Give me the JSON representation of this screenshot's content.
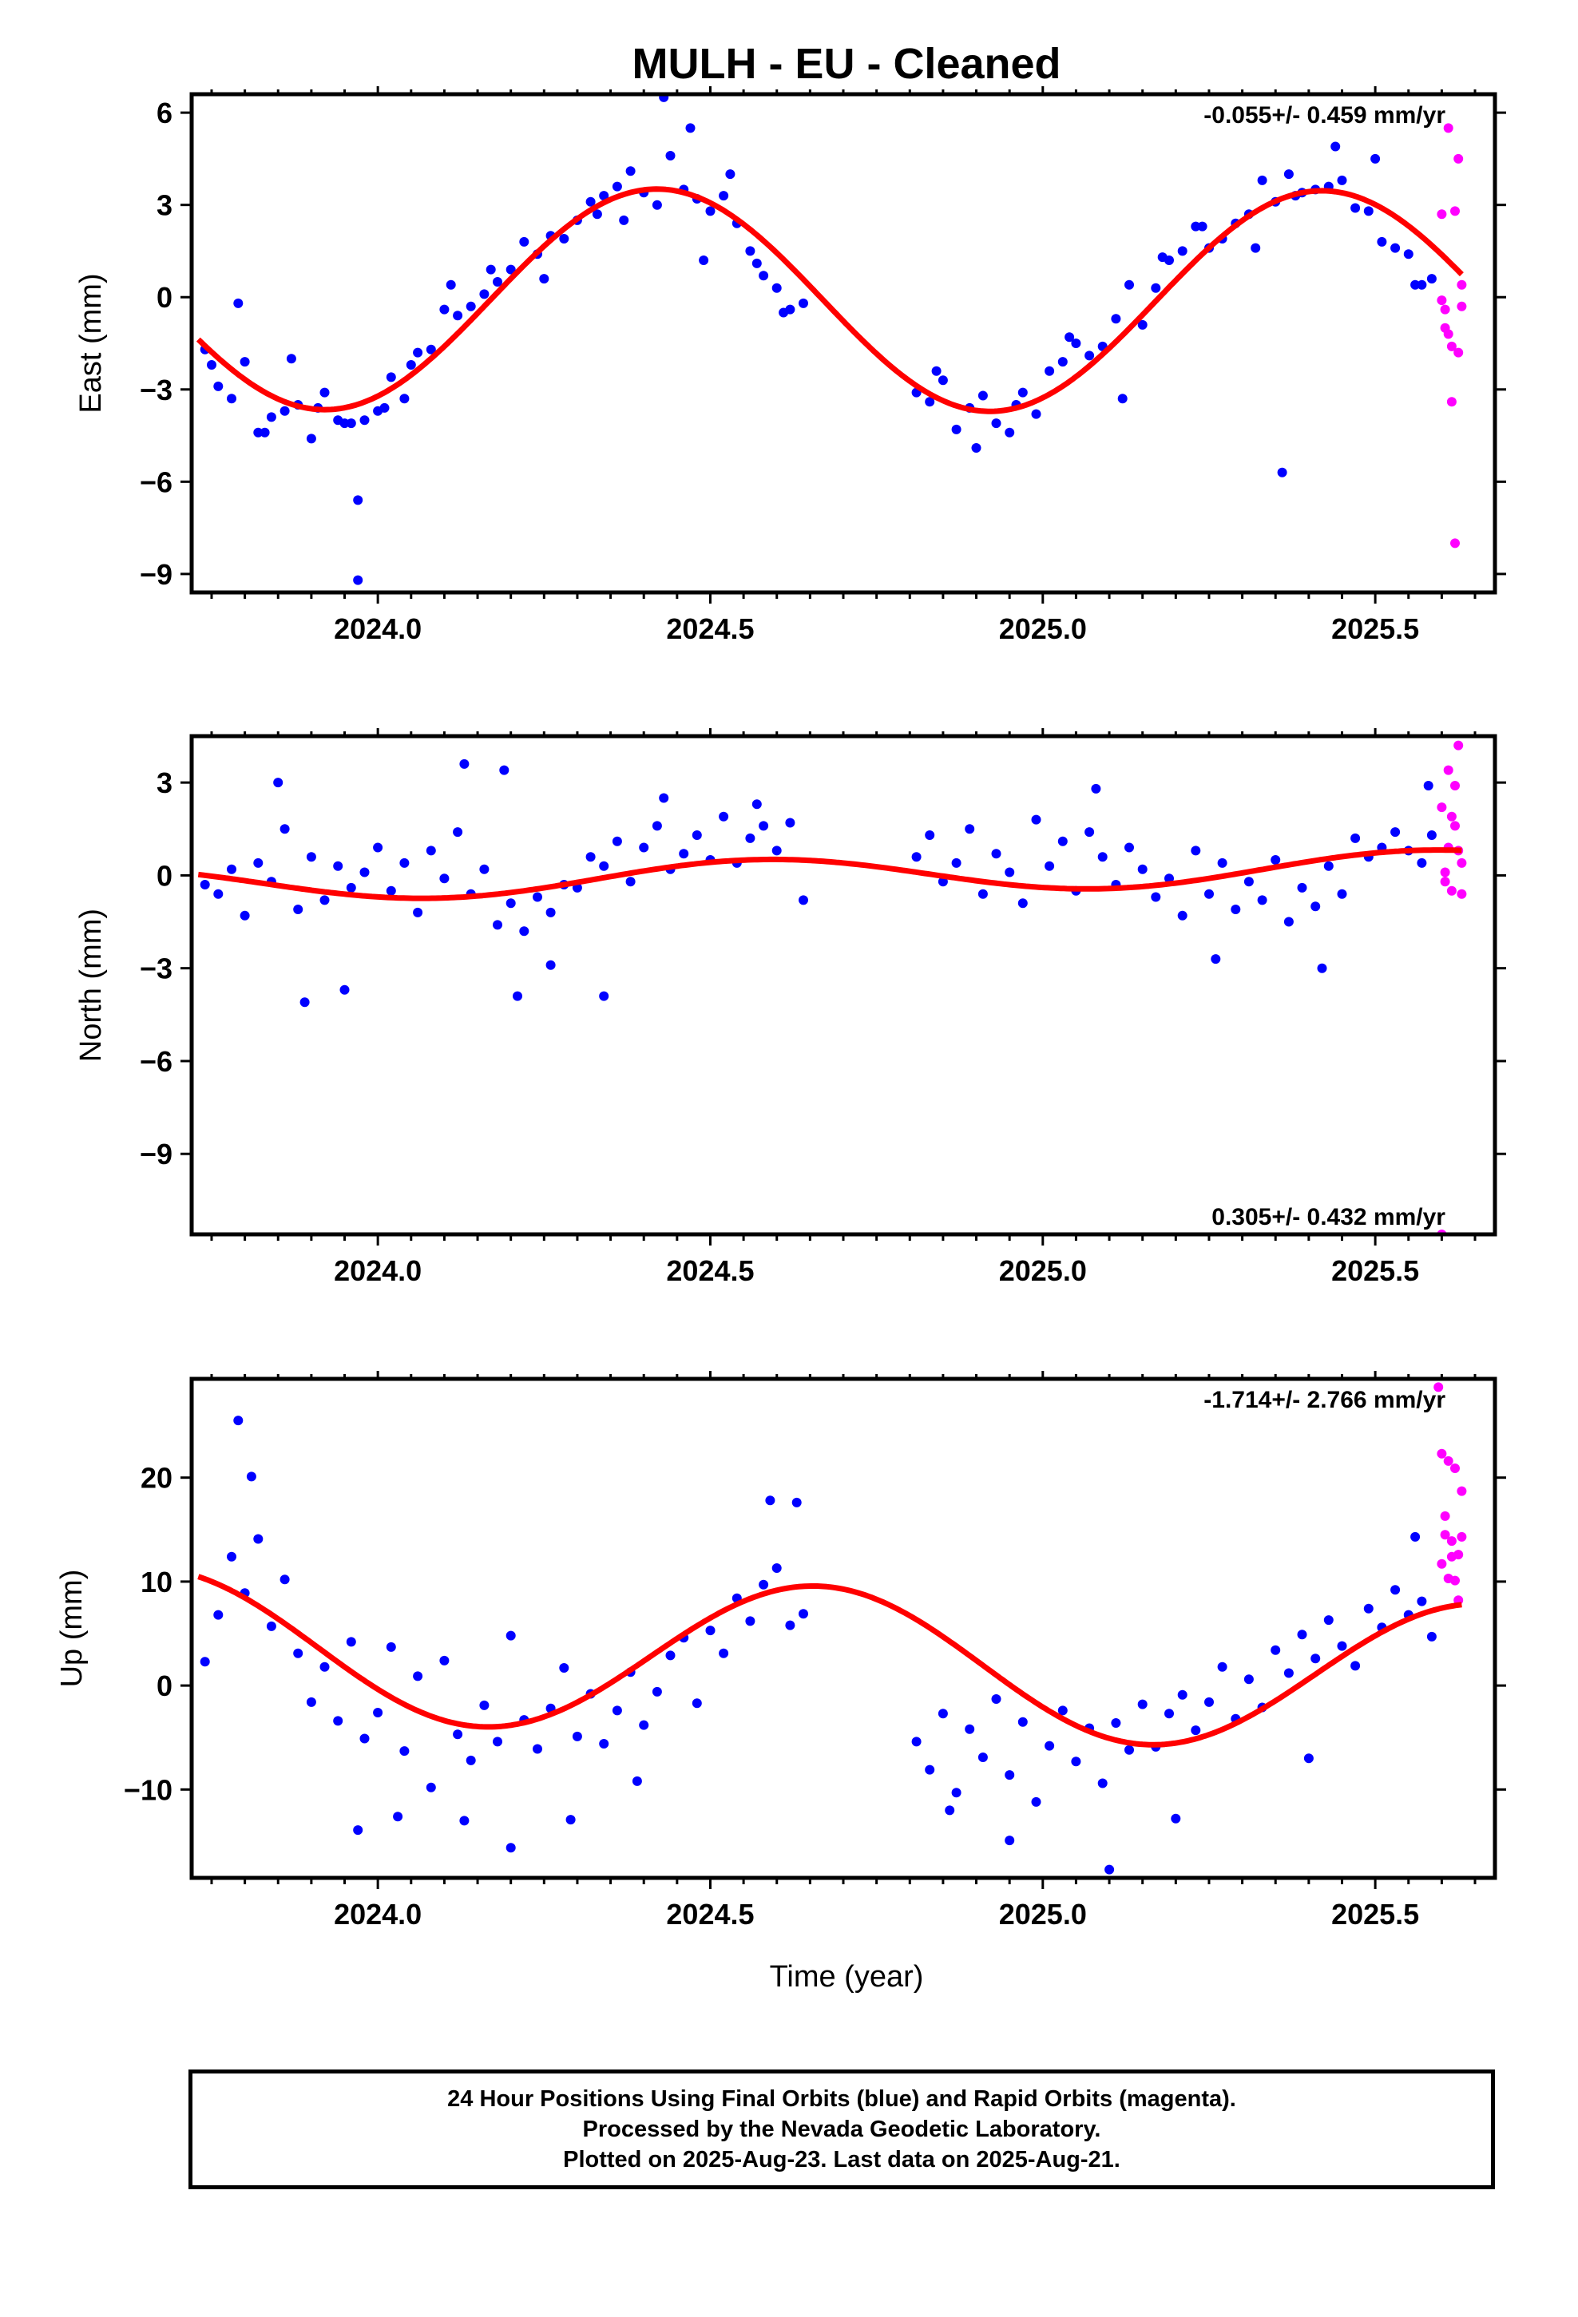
{
  "title": "MULH  - EU - Cleaned",
  "xlabel": "Time (year)",
  "caption": [
    "24 Hour Positions Using Final Orbits (blue) and Rapid Orbits (magenta).",
    "Processed by the Nevada Geodetic Laboratory.",
    "Plotted on 2025-Aug-23. Last data on 2025-Aug-21."
  ],
  "colors": {
    "final": "#0000ff",
    "rapid": "#ff00ff",
    "model": "#ff0000",
    "frame": "#000000"
  },
  "chart_data": [
    {
      "type": "scatter",
      "ylabel": "East (mm)",
      "rate": "-0.055+/- 0.459 mm/yr",
      "rate_placement": "top-right",
      "xlim": [
        2023.72,
        2025.68
      ],
      "ylim": [
        -9.6,
        6.6
      ],
      "xticks": [
        2024.0,
        2024.5,
        2025.0,
        2025.5
      ],
      "xtick_labels": [
        "2024.0",
        "2024.5",
        "2025.0",
        "2025.5"
      ],
      "yticks": [
        6,
        3,
        0,
        -3,
        -6,
        -9
      ],
      "ytick_labels": [
        "6",
        "3",
        "0",
        "−3",
        "−6",
        "−9"
      ],
      "model": {
        "offset": -0.1,
        "trend": -0.055,
        "annual_amp": 3.6,
        "annual_peak": 0.42,
        "x_start": 2023.73,
        "x_end": 2025.63
      },
      "series": [
        {
          "x": [
            2023.74,
            2023.76,
            2023.78,
            2023.8,
            2023.82,
            2023.84,
            2023.86,
            2023.88,
            2023.9,
            2023.92,
            2023.94,
            2023.96,
            2023.98,
            2024.0,
            2024.02,
            2024.04,
            2024.06,
            2024.08,
            2024.1,
            2024.12,
            2024.14,
            2024.16,
            2024.18,
            2024.2,
            2024.22,
            2024.24,
            2024.26,
            2024.28,
            2024.3,
            2024.32,
            2024.34,
            2024.36,
            2024.38,
            2024.4,
            2024.42,
            2024.44,
            2024.46,
            2024.48,
            2024.5,
            2024.52,
            2024.54,
            2024.56,
            2024.58,
            2024.6,
            2024.62,
            2024.64,
            2024.81,
            2024.83,
            2024.85,
            2024.87,
            2024.89,
            2024.91,
            2024.93,
            2024.95,
            2024.97,
            2024.99,
            2025.01,
            2025.03,
            2025.05,
            2025.07,
            2025.09,
            2025.11,
            2025.13,
            2025.15,
            2025.17,
            2025.19,
            2025.21,
            2025.23,
            2025.25,
            2025.27,
            2025.29,
            2025.31,
            2025.33,
            2025.35,
            2025.37,
            2025.39,
            2025.41,
            2025.43,
            2025.45,
            2025.47,
            2025.49,
            2025.51,
            2025.53,
            2025.55,
            2025.57,
            2025.585,
            2023.75,
            2023.79,
            2023.83,
            2023.87,
            2023.91,
            2023.95,
            2023.97,
            2024.01,
            2024.05,
            2024.11,
            2024.17,
            2024.25,
            2024.33,
            2024.37,
            2024.43,
            2024.47,
            2024.49,
            2024.53,
            2024.57,
            2024.61,
            2024.84,
            2024.9,
            2024.96,
            2025.04,
            2025.12,
            2025.18,
            2025.24,
            2025.32,
            2025.38,
            2025.44,
            2025.5,
            2025.56
          ],
          "y": [
            -1.7,
            -2.9,
            -3.3,
            -2.1,
            -4.4,
            -3.9,
            -3.7,
            -3.5,
            -4.6,
            -3.1,
            -4.0,
            -4.1,
            -4.0,
            -3.7,
            -2.6,
            -3.3,
            -1.8,
            -1.7,
            -0.4,
            -0.6,
            -0.3,
            0.1,
            0.5,
            0.9,
            1.8,
            1.4,
            2.0,
            1.9,
            2.5,
            3.1,
            3.3,
            3.6,
            4.1,
            3.4,
            3.0,
            4.6,
            3.5,
            3.2,
            2.8,
            3.3,
            2.4,
            1.5,
            0.7,
            0.3,
            -0.4,
            -0.2,
            -3.1,
            -3.4,
            -2.7,
            -4.3,
            -3.6,
            -3.2,
            -4.1,
            -4.4,
            -3.1,
            -3.8,
            -2.4,
            -2.1,
            -1.5,
            -1.9,
            -1.6,
            -0.7,
            0.4,
            -0.9,
            0.3,
            1.2,
            1.5,
            2.3,
            1.6,
            1.9,
            2.4,
            2.7,
            3.8,
            3.1,
            4.0,
            3.4,
            3.5,
            3.6,
            3.8,
            2.9,
            2.8,
            1.8,
            1.6,
            1.4,
            0.4,
            0.6,
            -2.2,
            -0.2,
            -4.4,
            -2.0,
            -3.6,
            -4.1,
            -6.6,
            -3.6,
            -2.2,
            0.4,
            0.9,
            0.6,
            2.7,
            2.5,
            6.5,
            5.5,
            1.2,
            4.0,
            1.1,
            -0.5,
            -2.4,
            -4.9,
            -3.5,
            -1.3,
            -3.3,
            1.3,
            2.3,
            1.6,
            3.3,
            4.9,
            4.5,
            0.4
          ]
        },
        {
          "x": [
            2023.97,
            2025.36
          ],
          "y": [
            -9.2,
            -5.7
          ]
        }
      ],
      "rapid": {
        "x": [
          2025.6,
          2025.605,
          2025.61,
          2025.615,
          2025.62,
          2025.625,
          2025.63,
          2025.6,
          2025.61,
          2025.62,
          2025.63,
          2025.605,
          2025.615,
          2025.625
        ],
        "y": [
          2.7,
          -0.4,
          5.5,
          -1.6,
          2.8,
          4.5,
          0.4,
          -0.1,
          -1.2,
          -8.0,
          -0.3,
          -1.0,
          -3.4,
          -1.8
        ]
      }
    },
    {
      "type": "scatter",
      "ylabel": "North (mm)",
      "rate": "0.305+/- 0.432 mm/yr",
      "rate_placement": "bottom-right",
      "xlim": [
        2023.72,
        2025.68
      ],
      "ylim": [
        -11.6,
        4.5
      ],
      "xticks": [
        2024.0,
        2024.5,
        2025.0,
        2025.5
      ],
      "xtick_labels": [
        "2024.0",
        "2024.5",
        "2025.0",
        "2025.5"
      ],
      "yticks": [
        3,
        0,
        -3,
        -6,
        -9
      ],
      "ytick_labels": [
        "3",
        "0",
        "−3",
        "−6",
        "−9"
      ],
      "model": {
        "offset": 0.0,
        "trend": 0.305,
        "annual_amp": 0.55,
        "annual_peak": 0.58,
        "x_start": 2023.73,
        "x_end": 2025.63
      },
      "series": [
        {
          "x": [
            2023.74,
            2023.76,
            2023.78,
            2023.8,
            2023.82,
            2023.84,
            2023.86,
            2023.88,
            2023.9,
            2023.92,
            2023.94,
            2023.96,
            2023.98,
            2024.0,
            2024.02,
            2024.04,
            2024.06,
            2024.08,
            2024.1,
            2024.12,
            2024.14,
            2024.16,
            2024.18,
            2024.2,
            2024.22,
            2024.24,
            2024.26,
            2024.28,
            2024.3,
            2024.32,
            2024.34,
            2024.36,
            2024.38,
            2024.4,
            2024.42,
            2024.44,
            2024.46,
            2024.48,
            2024.5,
            2024.52,
            2024.54,
            2024.56,
            2024.58,
            2024.6,
            2024.62,
            2024.64,
            2024.81,
            2024.83,
            2024.85,
            2024.87,
            2024.89,
            2024.91,
            2024.93,
            2024.95,
            2024.97,
            2024.99,
            2025.01,
            2025.03,
            2025.05,
            2025.07,
            2025.09,
            2025.11,
            2025.13,
            2025.15,
            2025.17,
            2025.19,
            2025.21,
            2025.23,
            2025.25,
            2025.27,
            2025.29,
            2025.31,
            2025.33,
            2025.35,
            2025.37,
            2025.39,
            2025.41,
            2025.43,
            2025.45,
            2025.47,
            2025.49,
            2025.51,
            2025.53,
            2025.55,
            2025.57,
            2025.585,
            2023.85,
            2023.89,
            2023.95,
            2024.13,
            2024.19,
            2024.21,
            2024.26,
            2024.34,
            2024.43,
            2024.57,
            2025.08,
            2025.26,
            2025.42,
            2025.58
          ],
          "y": [
            -0.3,
            -0.6,
            0.2,
            -1.3,
            0.4,
            -0.2,
            1.5,
            -1.1,
            0.6,
            -0.8,
            0.3,
            -0.4,
            0.1,
            0.9,
            -0.5,
            0.4,
            -1.2,
            0.8,
            -0.1,
            1.4,
            -0.6,
            0.2,
            -1.6,
            -0.9,
            -1.8,
            -0.7,
            -1.2,
            -0.3,
            -0.4,
            0.6,
            0.3,
            1.1,
            -0.2,
            0.9,
            1.6,
            0.2,
            0.7,
            1.3,
            0.5,
            1.9,
            0.4,
            1.2,
            1.6,
            0.8,
            1.7,
            -0.8,
            0.6,
            1.3,
            -0.2,
            0.4,
            1.5,
            -0.6,
            0.7,
            0.1,
            -0.9,
            1.8,
            0.3,
            1.1,
            -0.5,
            1.4,
            0.6,
            -0.3,
            0.9,
            0.2,
            -0.7,
            -0.1,
            -1.3,
            0.8,
            -0.6,
            0.4,
            -1.1,
            -0.2,
            -0.8,
            0.5,
            -1.5,
            -0.4,
            -1.0,
            0.3,
            -0.6,
            1.2,
            0.6,
            0.9,
            1.4,
            0.8,
            0.4,
            1.3,
            3.0,
            -4.1,
            -3.7,
            3.6,
            3.4,
            -3.9,
            -2.9,
            -3.9,
            2.5,
            2.3,
            2.8,
            -2.7,
            -3.0,
            2.9
          ]
        }
      ],
      "rapid": {
        "x": [
          2025.6,
          2025.605,
          2025.61,
          2025.615,
          2025.62,
          2025.625,
          2025.63,
          2025.6,
          2025.61,
          2025.62,
          2025.63,
          2025.605,
          2025.615,
          2025.625
        ],
        "y": [
          2.2,
          0.1,
          3.4,
          -0.5,
          1.6,
          4.2,
          -0.6,
          -11.6,
          0.9,
          2.9,
          0.4,
          -0.2,
          1.9,
          0.8
        ]
      }
    },
    {
      "type": "scatter",
      "ylabel": "Up (mm)",
      "rate": "-1.714+/- 2.766 mm/yr",
      "rate_placement": "top-right",
      "xlim": [
        2023.72,
        2025.68
      ],
      "ylim": [
        -18.5,
        29.5
      ],
      "xticks": [
        2024.0,
        2024.5,
        2025.0,
        2025.5
      ],
      "xtick_labels": [
        "2024.0",
        "2024.5",
        "2025.0",
        "2025.5"
      ],
      "yticks": [
        20,
        10,
        0,
        -10
      ],
      "ytick_labels": [
        "20",
        "10",
        "0",
        "−10"
      ],
      "model": {
        "offset": 2.3,
        "trend": -1.714,
        "annual_amp": 7.2,
        "annual_peak": 0.66,
        "x_start": 2023.73,
        "x_end": 2025.63
      },
      "series": [
        {
          "x": [
            2023.74,
            2023.76,
            2023.78,
            2023.8,
            2023.82,
            2023.84,
            2023.86,
            2023.88,
            2023.9,
            2023.92,
            2023.94,
            2023.96,
            2023.98,
            2024.0,
            2024.02,
            2024.04,
            2024.06,
            2024.08,
            2024.1,
            2024.12,
            2024.14,
            2024.16,
            2024.18,
            2024.2,
            2024.22,
            2024.24,
            2024.26,
            2024.28,
            2024.3,
            2024.32,
            2024.34,
            2024.36,
            2024.38,
            2024.4,
            2024.42,
            2024.44,
            2024.46,
            2024.48,
            2024.5,
            2024.52,
            2024.54,
            2024.56,
            2024.58,
            2024.6,
            2024.62,
            2024.64,
            2024.81,
            2024.83,
            2024.85,
            2024.87,
            2024.89,
            2024.91,
            2024.93,
            2024.95,
            2024.97,
            2024.99,
            2025.01,
            2025.03,
            2025.05,
            2025.07,
            2025.09,
            2025.11,
            2025.13,
            2025.15,
            2025.17,
            2025.19,
            2025.21,
            2025.23,
            2025.25,
            2025.27,
            2025.29,
            2025.31,
            2025.33,
            2025.35,
            2025.37,
            2025.39,
            2025.41,
            2025.43,
            2025.45,
            2025.47,
            2025.49,
            2025.51,
            2025.53,
            2025.55,
            2025.57,
            2025.585,
            2023.79,
            2023.81,
            2023.97,
            2024.03,
            2024.13,
            2024.2,
            2024.29,
            2024.39,
            2024.59,
            2024.63,
            2024.86,
            2024.95,
            2025.1,
            2025.2,
            2025.4,
            2025.56
          ],
          "y": [
            2.3,
            6.8,
            12.4,
            8.9,
            14.1,
            5.7,
            10.2,
            3.1,
            -1.6,
            1.8,
            -3.4,
            4.2,
            -5.1,
            -2.6,
            3.7,
            -6.3,
            0.9,
            -9.8,
            2.4,
            -4.7,
            -7.2,
            -1.9,
            -5.4,
            4.8,
            -3.3,
            -6.1,
            -2.2,
            1.7,
            -4.9,
            -0.8,
            -5.6,
            -2.4,
            1.3,
            -3.8,
            -0.6,
            2.9,
            4.6,
            -1.7,
            5.3,
            3.1,
            8.4,
            6.2,
            9.7,
            11.3,
            5.8,
            6.9,
            -5.4,
            -8.1,
            -2.7,
            -10.3,
            -4.2,
            -6.9,
            -1.3,
            -8.6,
            -3.5,
            -11.2,
            -5.8,
            -2.4,
            -7.3,
            -4.1,
            -9.4,
            -3.6,
            -6.2,
            -1.8,
            -5.9,
            -2.7,
            -0.9,
            -4.3,
            -1.6,
            1.8,
            -3.2,
            0.6,
            -2.1,
            3.4,
            1.2,
            4.9,
            2.6,
            6.3,
            3.8,
            1.9,
            7.4,
            5.6,
            9.2,
            6.8,
            8.1,
            4.7,
            25.5,
            20.1,
            -13.9,
            -12.6,
            -13.0,
            -15.6,
            -12.9,
            -9.2,
            17.8,
            17.6,
            -12.0,
            -14.9,
            -17.7,
            -12.8,
            -7.0,
            14.3
          ]
        }
      ],
      "rapid": {
        "x": [
          2025.6,
          2025.605,
          2025.61,
          2025.615,
          2025.62,
          2025.625,
          2025.63,
          2025.6,
          2025.61,
          2025.62,
          2025.63,
          2025.605,
          2025.615,
          2025.625,
          2025.595
        ],
        "y": [
          22.3,
          14.5,
          21.6,
          13.9,
          20.9,
          12.6,
          18.7,
          11.7,
          10.3,
          10.1,
          14.3,
          16.3,
          12.4,
          8.2,
          28.7
        ]
      }
    }
  ]
}
